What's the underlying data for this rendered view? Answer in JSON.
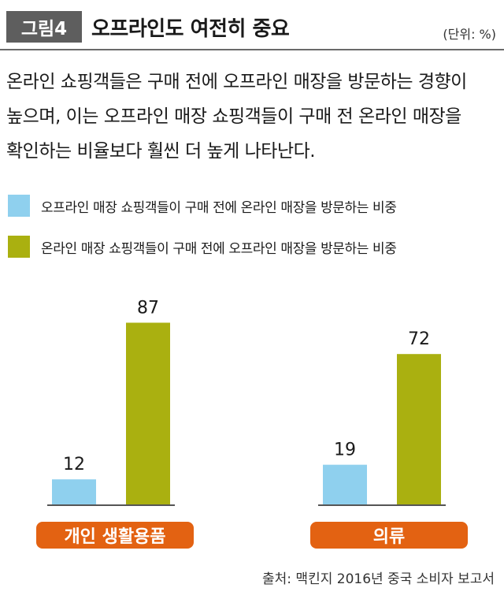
{
  "header": {
    "figure_label": "그림4",
    "title": "오프라인도 여전히 중요",
    "unit": "(단위: %)"
  },
  "description": "온라인 쇼핑객들은 구매 전에 오프라인 매장을 방문하는 경향이 높으며, 이는 오프라인 매장 쇼핑객들이 구매 전 온라인 매장을 확인하는 비율보다 훨씬 더 높게 나타난다.",
  "source": "출처: 맥킨지 2016년 중국 소비자 보고서",
  "colors": {
    "series1": "#8fd0ee",
    "series2": "#aab010",
    "category_pill": "#e36212",
    "baseline": "#555555"
  },
  "chart_data": {
    "type": "bar",
    "categories": [
      "개인 생활용품",
      "의류"
    ],
    "series": [
      {
        "name": "오프라인 매장 쇼핑객들이 구매 전에 온라인 매장을 방문하는 비중",
        "values": [
          12,
          19
        ],
        "color": "#8fd0ee"
      },
      {
        "name": "온라인 매장 쇼핑객들이 구매 전에 오프라인 매장을 방문하는 비중",
        "values": [
          87,
          72
        ],
        "color": "#aab010"
      }
    ],
    "ylim": [
      0,
      100
    ],
    "legend": "top-left",
    "grid": false,
    "data_labels": true
  }
}
